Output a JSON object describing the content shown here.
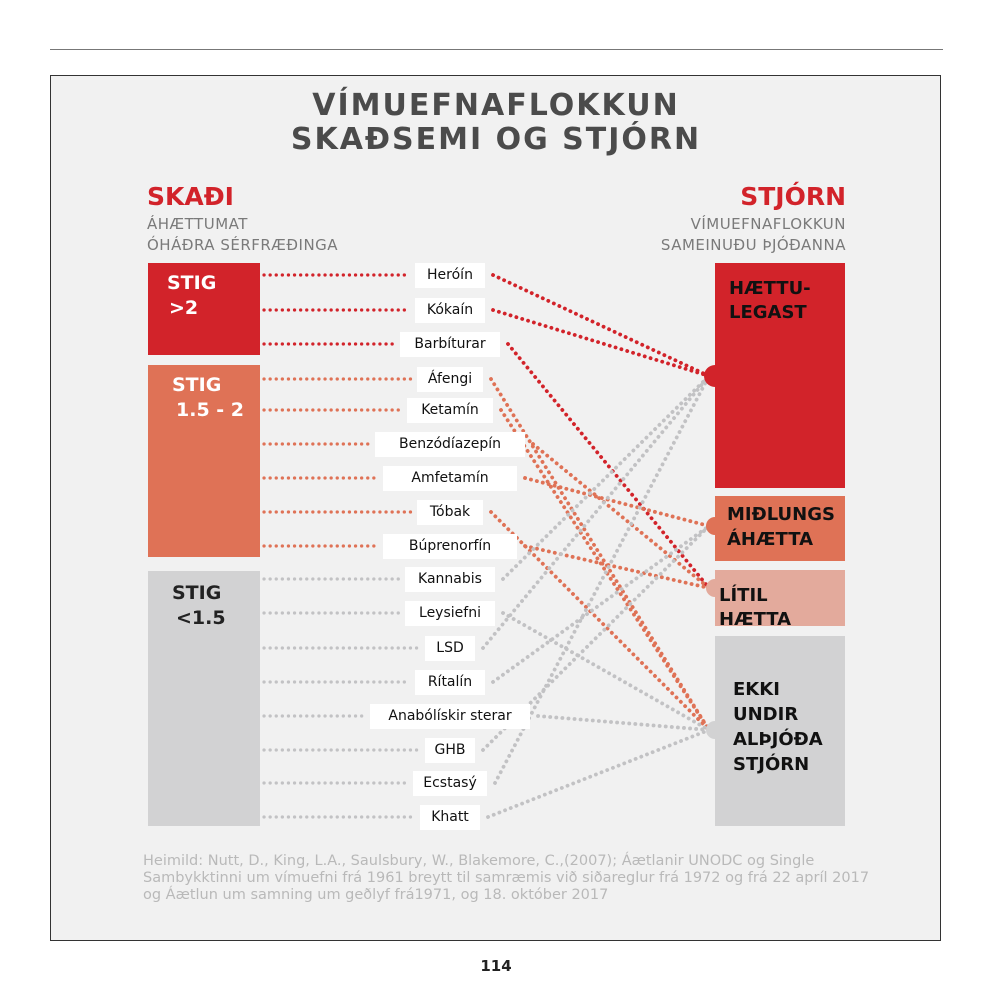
{
  "title_lines": [
    "VÍMUEFNAFLOKKUN",
    "SKAÐSEMI OG STJÓRN"
  ],
  "left": {
    "heading": "SKAÐI",
    "sub_lines": [
      "ÁHÆTTUMAT",
      "ÓHÁÐRA SÉRFRÆÐINGA"
    ],
    "boxes": [
      {
        "label_lines": [
          "STIG",
          ">2"
        ],
        "color": "#d2232a",
        "text_color": "#ffffff"
      },
      {
        "label_lines": [
          "STIG",
          "1.5 - 2"
        ],
        "color": "#df7256",
        "text_color": "#ffffff"
      },
      {
        "label_lines": [
          "STIG",
          "<1.5"
        ],
        "color": "#d2d2d3",
        "text_color": "#222222"
      }
    ]
  },
  "right": {
    "heading": "STJÓRN",
    "sub_lines": [
      "VÍMUEFNAFLOKKUN",
      "SAMEINUÐU ÞJÓÐANNA"
    ],
    "boxes": [
      {
        "label_lines": [
          "HÆTTU-",
          "LEGAST"
        ],
        "color": "#d2232a"
      },
      {
        "label_lines": [
          "MIÐLUNGS",
          "ÁHÆTTA"
        ],
        "color": "#df7256"
      },
      {
        "label_lines": [
          "LÍTIL HÆTTA"
        ],
        "color": "#e3aa9c"
      },
      {
        "label_lines": [
          "EKKI",
          "UNDIR",
          "ALÞJÓÐA",
          "STJÓRN"
        ],
        "color": "#d2d2d3"
      }
    ]
  },
  "drugs": [
    {
      "name": "Heróín",
      "harm": 0,
      "control": 0
    },
    {
      "name": "Kókaín",
      "harm": 0,
      "control": 0
    },
    {
      "name": "Barbíturar",
      "harm": 0,
      "control": 2
    },
    {
      "name": "Áfengi",
      "harm": 1,
      "control": 3
    },
    {
      "name": "Ketamín",
      "harm": 1,
      "control": 3
    },
    {
      "name": "Benzódíazepín",
      "harm": 1,
      "control": 2
    },
    {
      "name": "Amfetamín",
      "harm": 1,
      "control": 1
    },
    {
      "name": "Tóbak",
      "harm": 1,
      "control": 3
    },
    {
      "name": "Búprenorfín",
      "harm": 1,
      "control": 2
    },
    {
      "name": "Kannabis",
      "harm": 2,
      "control": 0
    },
    {
      "name": "Leysiefni",
      "harm": 2,
      "control": 3
    },
    {
      "name": "LSD",
      "harm": 2,
      "control": 0
    },
    {
      "name": "Rítalín",
      "harm": 2,
      "control": 1
    },
    {
      "name": "Anabólískir sterar",
      "harm": 2,
      "control": 3
    },
    {
      "name": "GHB",
      "harm": 2,
      "control": 1
    },
    {
      "name": "Ecstasý",
      "harm": 2,
      "control": 0
    },
    {
      "name": "Khatt",
      "harm": 2,
      "control": 3
    }
  ],
  "source_lines": [
    "Heimild: Nutt, D., King, L.A., Saulsbury, W., Blakemore, C.,(2007); Áætlanir UNODC og Single",
    "Sambykktinni um vímuefni frá 1961  breytt til samræmis við  siðareglur frá 1972 og frá 22 apríl 2017",
    "og Áætlun um samning um  geðlyf frá1971, og 18. október 2017"
  ],
  "page_number": "114"
}
